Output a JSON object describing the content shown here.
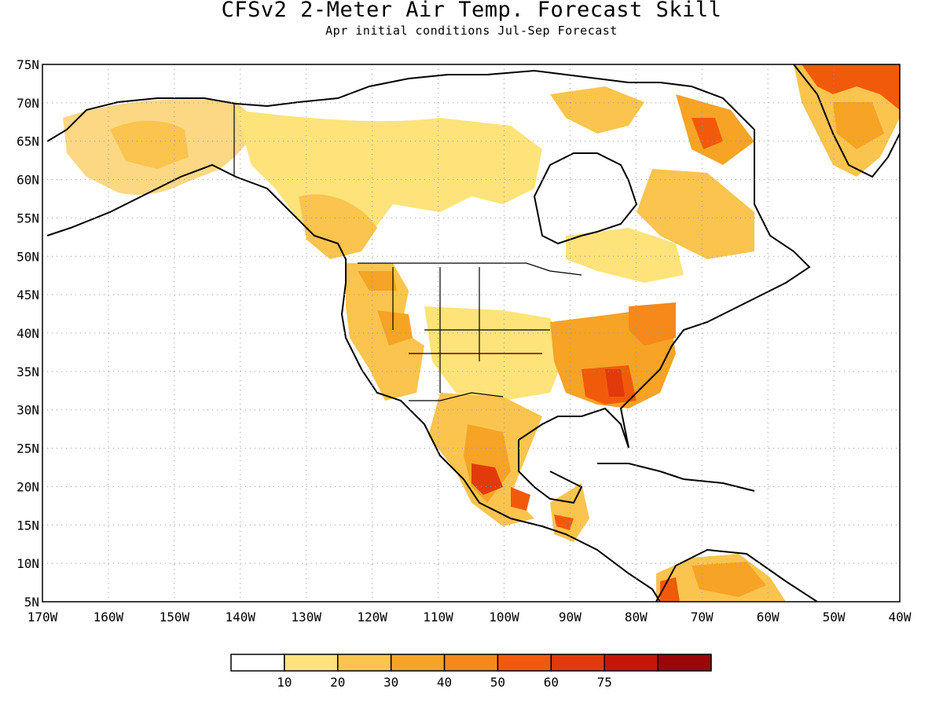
{
  "title": "CFSv2 2-Meter Air Temp. Forecast Skill",
  "subtitle": "Apr initial conditions  Jul-Sep Forecast",
  "map": {
    "lat_labels": [
      "75N",
      "70N",
      "65N",
      "60N",
      "55N",
      "50N",
      "45N",
      "40N",
      "35N",
      "30N",
      "25N",
      "20N",
      "15N",
      "10N",
      "5N"
    ],
    "lon_labels": [
      "170W",
      "160W",
      "150W",
      "140W",
      "130W",
      "120W",
      "110W",
      "100W",
      "90W",
      "80W",
      "70W",
      "60W",
      "50W",
      "40W"
    ],
    "extent": {
      "lon_min": -170,
      "lon_max": -40,
      "lat_min": 5,
      "lat_max": 75
    },
    "gridlines": "dotted"
  },
  "colorbar": {
    "labels": [
      "10",
      "20",
      "30",
      "40",
      "50",
      "60",
      "75"
    ],
    "colors": [
      "#ffffff",
      "#fde37a",
      "#fbc44e",
      "#f7a326",
      "#f6891a",
      "#f25a0b",
      "#e23a0a",
      "#c51608",
      "#9c0606"
    ]
  }
}
